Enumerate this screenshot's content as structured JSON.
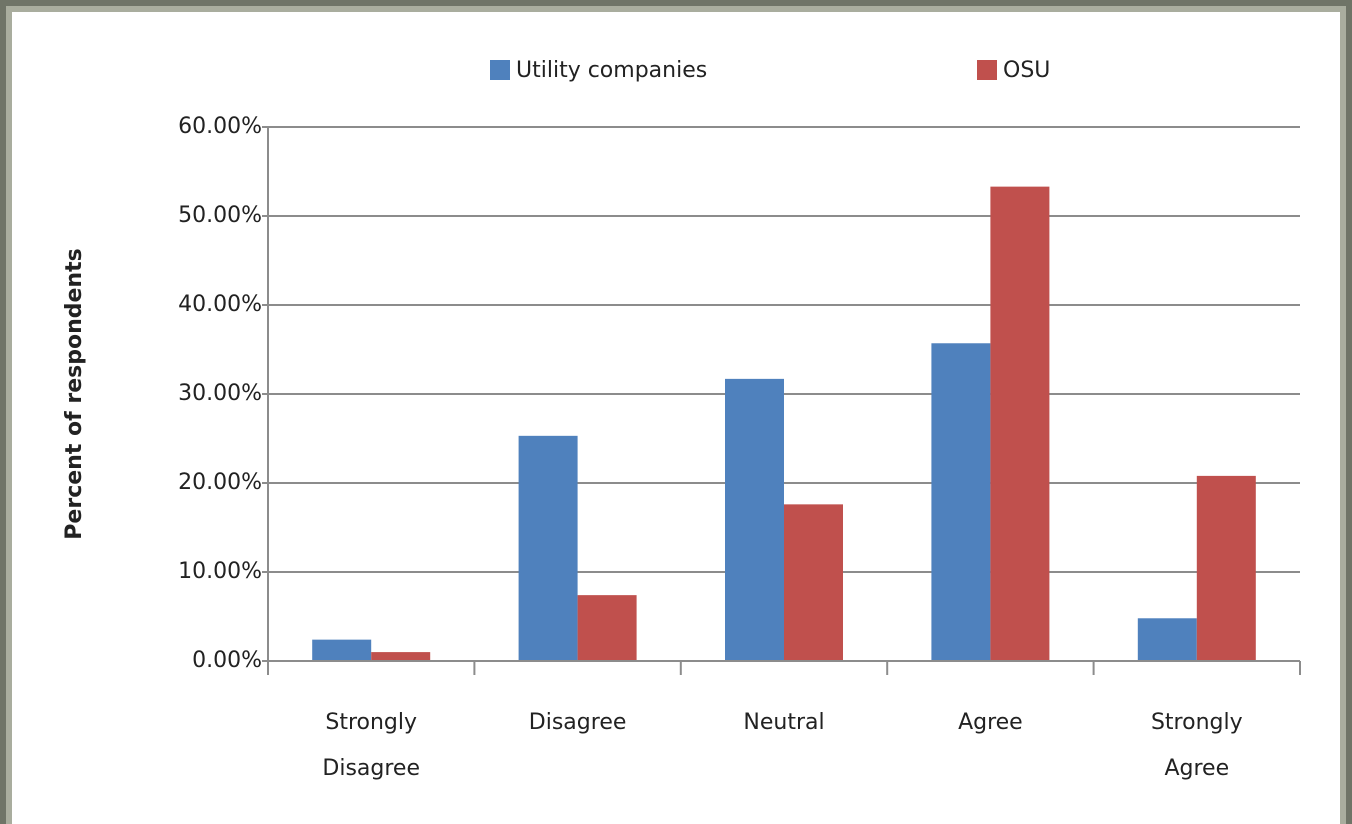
{
  "chart_data": {
    "type": "bar",
    "categories": [
      "Strongly Disagree",
      "Disagree",
      "Neutral",
      "Agree",
      "Strongly Agree"
    ],
    "series": [
      {
        "name": "Utility companies",
        "color": "#4f81bd",
        "values": [
          2.4,
          25.3,
          31.7,
          35.7,
          4.8
        ]
      },
      {
        "name": "OSU",
        "color": "#c0504d",
        "values": [
          1.0,
          7.4,
          17.6,
          53.3,
          20.8
        ]
      }
    ],
    "ylabel": "Percent of respondents",
    "ylim": [
      0,
      60
    ],
    "yticks": [
      {
        "value": 0,
        "label": "0.00%"
      },
      {
        "value": 10,
        "label": "10.00%"
      },
      {
        "value": 20,
        "label": "20.00%"
      },
      {
        "value": 30,
        "label": "30.00%"
      },
      {
        "value": 40,
        "label": "40.00%"
      },
      {
        "value": 50,
        "label": "50.00%"
      },
      {
        "value": 60,
        "label": "60.00%"
      }
    ],
    "grid": true,
    "legend": "top"
  }
}
